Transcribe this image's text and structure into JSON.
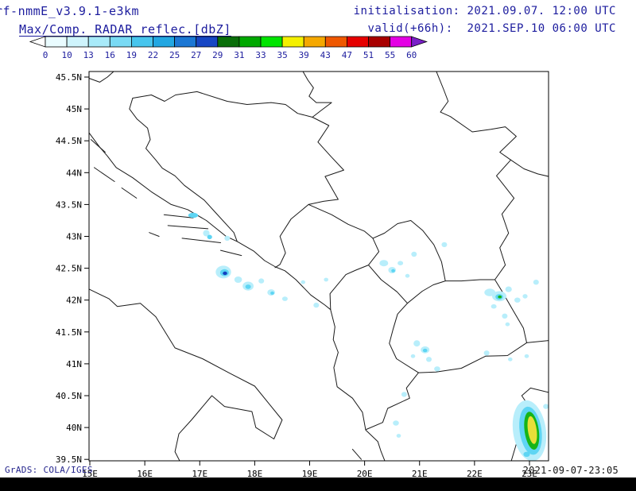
{
  "header": {
    "model": "rf-nmmE_v3.9.1-e3km",
    "product": "Max/Comp. RADAR reflec.[dbZ]",
    "initialisation": "initialisation: 2021.09.07. 12:00 UTC",
    "valid": "valid(+66h):  2021.SEP.10 06:00 UTC"
  },
  "colorbar": {
    "tick_labels": [
      "0",
      "10",
      "13",
      "16",
      "19",
      "22",
      "25",
      "27",
      "29",
      "31",
      "33",
      "35",
      "39",
      "43",
      "47",
      "51",
      "55",
      "60"
    ],
    "segment_colors": [
      "#eafcff",
      "#cff4fc",
      "#a8eaf9",
      "#79daf4",
      "#47c5ed",
      "#22a7e2",
      "#1b77d4",
      "#1646c4",
      "#0a6e0a",
      "#00a800",
      "#00e400",
      "#f4f000",
      "#f5a800",
      "#ef5800",
      "#e60000",
      "#a80000",
      "#e400e4"
    ],
    "left_arrow_color": "#ffffff",
    "right_arrow_color": "#7a1fc8",
    "label_color": "#1c1c9e"
  },
  "map": {
    "x_tick_labels": [
      "15E",
      "16E",
      "17E",
      "18E",
      "19E",
      "20E",
      "21E",
      "22E",
      "23E"
    ],
    "y_tick_labels": [
      "45.5N",
      "45N",
      "44.5N",
      "44N",
      "43.5N",
      "43N",
      "42.5N",
      "42N",
      "41.5N",
      "41N",
      "40.5N",
      "40N",
      "39.5N"
    ],
    "lon_min": 15,
    "lon_max": 23.36,
    "lat_min": 39.47,
    "lat_max": 45.59,
    "axis_label_color": "#000000",
    "outline_color": "#1a1a1a",
    "echo_colors": {
      "light": "#b8eefb",
      "cyan": "#5ed5f3",
      "blue": "#1f8fd8",
      "navy": "#1340c0",
      "green": "#17b517",
      "yellow": "#e8df39"
    },
    "echoes": [
      [
        16.88,
        43.33,
        0.09,
        0.04,
        "cyan"
      ],
      [
        17.12,
        43.05,
        0.06,
        0.05,
        "light"
      ],
      [
        17.18,
        42.99,
        0.045,
        0.035,
        "cyan"
      ],
      [
        17.5,
        42.97,
        0.05,
        0.04,
        "light"
      ],
      [
        17.43,
        42.44,
        0.14,
        0.1,
        "light"
      ],
      [
        17.45,
        42.43,
        0.08,
        0.055,
        "cyan"
      ],
      [
        17.46,
        42.42,
        0.04,
        0.028,
        "navy"
      ],
      [
        17.7,
        42.32,
        0.07,
        0.05,
        "light"
      ],
      [
        17.88,
        42.22,
        0.1,
        0.07,
        "light"
      ],
      [
        17.88,
        42.21,
        0.05,
        0.035,
        "cyan"
      ],
      [
        18.12,
        42.3,
        0.05,
        0.04,
        "light"
      ],
      [
        18.3,
        42.12,
        0.07,
        0.05,
        "light"
      ],
      [
        18.32,
        42.11,
        0.035,
        0.025,
        "cyan"
      ],
      [
        18.55,
        42.02,
        0.05,
        0.035,
        "light"
      ],
      [
        18.88,
        42.28,
        0.04,
        0.03,
        "light"
      ],
      [
        19.12,
        41.92,
        0.05,
        0.04,
        "light"
      ],
      [
        19.3,
        42.32,
        0.04,
        0.03,
        "light"
      ],
      [
        20.35,
        42.58,
        0.08,
        0.05,
        "light"
      ],
      [
        20.5,
        42.47,
        0.07,
        0.05,
        "light"
      ],
      [
        20.52,
        42.46,
        0.035,
        0.025,
        "cyan"
      ],
      [
        20.65,
        42.58,
        0.05,
        0.035,
        "light"
      ],
      [
        20.9,
        42.72,
        0.05,
        0.04,
        "light"
      ],
      [
        20.78,
        42.38,
        0.04,
        0.03,
        "light"
      ],
      [
        21.45,
        42.87,
        0.05,
        0.04,
        "light"
      ],
      [
        22.28,
        42.12,
        0.1,
        0.06,
        "light"
      ],
      [
        22.45,
        42.06,
        0.13,
        0.08,
        "light"
      ],
      [
        22.45,
        42.05,
        0.07,
        0.045,
        "cyan"
      ],
      [
        22.46,
        42.05,
        0.035,
        0.022,
        "green"
      ],
      [
        22.62,
        42.17,
        0.06,
        0.045,
        "light"
      ],
      [
        22.78,
        42.0,
        0.055,
        0.04,
        "light"
      ],
      [
        22.92,
        42.06,
        0.045,
        0.035,
        "light"
      ],
      [
        22.35,
        41.9,
        0.05,
        0.035,
        "light"
      ],
      [
        22.55,
        41.75,
        0.05,
        0.04,
        "light"
      ],
      [
        22.6,
        41.62,
        0.04,
        0.03,
        "light"
      ],
      [
        23.12,
        42.28,
        0.05,
        0.04,
        "light"
      ],
      [
        20.95,
        41.32,
        0.06,
        0.05,
        "light"
      ],
      [
        21.1,
        41.22,
        0.08,
        0.055,
        "light"
      ],
      [
        21.1,
        41.21,
        0.04,
        0.028,
        "cyan"
      ],
      [
        21.17,
        41.07,
        0.05,
        0.04,
        "light"
      ],
      [
        21.32,
        40.92,
        0.055,
        0.04,
        "light"
      ],
      [
        20.88,
        41.12,
        0.04,
        0.03,
        "light"
      ],
      [
        22.22,
        41.17,
        0.05,
        0.04,
        "light"
      ],
      [
        22.65,
        41.07,
        0.04,
        0.03,
        "light"
      ],
      [
        22.95,
        41.12,
        0.04,
        0.03,
        "light"
      ],
      [
        20.72,
        40.52,
        0.05,
        0.04,
        "light"
      ],
      [
        20.57,
        40.07,
        0.055,
        0.04,
        "light"
      ],
      [
        20.62,
        39.87,
        0.04,
        0.03,
        "light"
      ],
      [
        22.88,
        40.33,
        0.06,
        0.05,
        "light"
      ],
      [
        23.3,
        40.33,
        0.05,
        0.04,
        "light"
      ],
      [
        23.0,
        39.95,
        0.3,
        0.48,
        "light",
        -8
      ],
      [
        23.02,
        39.95,
        0.2,
        0.38,
        "cyan",
        -8
      ],
      [
        23.04,
        39.95,
        0.13,
        0.3,
        "green",
        -8
      ],
      [
        23.05,
        39.96,
        0.08,
        0.22,
        "yellow",
        -8
      ],
      [
        22.95,
        39.58,
        0.06,
        0.04,
        "cyan"
      ]
    ]
  },
  "footer": {
    "credit": "GrADS: COLA/IGES",
    "timestamp": "2021-09-07-23:05"
  }
}
